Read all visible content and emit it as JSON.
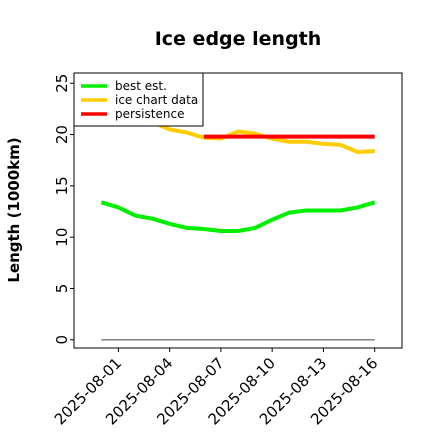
{
  "chart_data": {
    "type": "line",
    "title": "Ice edge length",
    "xlabel": "",
    "ylabel": "Length (1000km)",
    "x_ticks": [
      "2025-08-01",
      "2025-08-04",
      "2025-08-07",
      "2025-08-10",
      "2025-08-13",
      "2025-08-16"
    ],
    "y_ticks": [
      "0",
      "5",
      "10",
      "15",
      "20",
      "25"
    ],
    "ylim": [
      -0.8,
      26
    ],
    "x_dates": [
      "2025-07-31",
      "2025-08-01",
      "2025-08-02",
      "2025-08-03",
      "2025-08-04",
      "2025-08-05",
      "2025-08-06",
      "2025-08-07",
      "2025-08-08",
      "2025-08-09",
      "2025-08-10",
      "2025-08-11",
      "2025-08-12",
      "2025-08-13",
      "2025-08-14",
      "2025-08-15",
      "2025-08-16"
    ],
    "legend_position": "upper-left",
    "grid": false,
    "series": [
      {
        "name": "best est.",
        "color": "#00ee00",
        "x": [
          "2025-07-31",
          "2025-08-01",
          "2025-08-02",
          "2025-08-03",
          "2025-08-04",
          "2025-08-05",
          "2025-08-06",
          "2025-08-07",
          "2025-08-08",
          "2025-08-09",
          "2025-08-10",
          "2025-08-11",
          "2025-08-12",
          "2025-08-13",
          "2025-08-14",
          "2025-08-15",
          "2025-08-16"
        ],
        "values": [
          13.4,
          12.9,
          12.1,
          11.8,
          11.3,
          10.9,
          10.8,
          10.6,
          10.6,
          10.9,
          11.7,
          12.4,
          12.6,
          12.6,
          12.6,
          12.9,
          13.4
        ]
      },
      {
        "name": "ice chart data",
        "color": "#ffcc00",
        "x": [
          "2025-08-03",
          "2025-08-04",
          "2025-08-05",
          "2025-08-06",
          "2025-08-07",
          "2025-08-08",
          "2025-08-09",
          "2025-08-10",
          "2025-08-11",
          "2025-08-12",
          "2025-08-13",
          "2025-08-14",
          "2025-08-15",
          "2025-08-16"
        ],
        "values": [
          21.2,
          20.5,
          20.2,
          19.7,
          19.6,
          20.3,
          20.1,
          19.6,
          19.3,
          19.3,
          19.1,
          19.0,
          18.3,
          18.4
        ]
      },
      {
        "name": "persistence",
        "color": "#ff0000",
        "x": [
          "2025-08-06",
          "2025-08-16"
        ],
        "values": [
          19.8,
          19.8
        ]
      }
    ],
    "reference_line": {
      "y": 0,
      "from": "2025-07-31",
      "to": "2025-08-16",
      "color": "#808080"
    }
  }
}
